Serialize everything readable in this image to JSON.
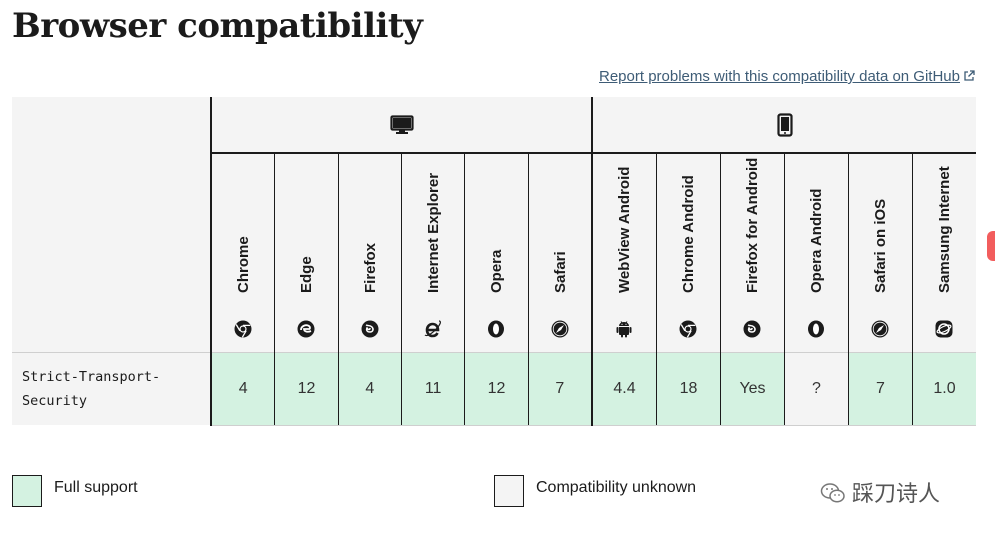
{
  "page": {
    "title": "Browser compatibility",
    "report_link": "Report problems with this compatibility data on GitHub"
  },
  "platforms": [
    {
      "name": "desktop",
      "icon": "desktop-icon"
    },
    {
      "name": "mobile",
      "icon": "mobile-icon"
    }
  ],
  "browsers": [
    {
      "name": "Chrome",
      "icon": "chrome-icon"
    },
    {
      "name": "Edge",
      "icon": "edge-icon"
    },
    {
      "name": "Firefox",
      "icon": "firefox-icon"
    },
    {
      "name": "Internet Explorer",
      "icon": "internet-explorer-icon"
    },
    {
      "name": "Opera",
      "icon": "opera-icon"
    },
    {
      "name": "Safari",
      "icon": "safari-icon"
    },
    {
      "name": "WebView Android",
      "icon": "android-icon"
    },
    {
      "name": "Chrome Android",
      "icon": "chrome-icon"
    },
    {
      "name": "Firefox for Android",
      "icon": "firefox-icon"
    },
    {
      "name": "Opera Android",
      "icon": "opera-icon"
    },
    {
      "name": "Safari on iOS",
      "icon": "safari-icon"
    },
    {
      "name": "Samsung Internet",
      "icon": "samsung-internet-icon"
    }
  ],
  "feature": {
    "name_line1": "Strict-Transport-",
    "name_line2": "Security",
    "support": [
      {
        "value": "4",
        "status": "full"
      },
      {
        "value": "12",
        "status": "full"
      },
      {
        "value": "4",
        "status": "full"
      },
      {
        "value": "11",
        "status": "full"
      },
      {
        "value": "12",
        "status": "full"
      },
      {
        "value": "7",
        "status": "full"
      },
      {
        "value": "4.4",
        "status": "full"
      },
      {
        "value": "18",
        "status": "full"
      },
      {
        "value": "Yes",
        "status": "full"
      },
      {
        "value": "?",
        "status": "unknown"
      },
      {
        "value": "7",
        "status": "full"
      },
      {
        "value": "1.0",
        "status": "full"
      }
    ]
  },
  "legend": {
    "full_support": "Full support",
    "compat_unknown": "Compatibility unknown"
  },
  "colors": {
    "full_support": "#d4f2e1",
    "unknown": "#f4f4f4",
    "link": "#3e5c76"
  },
  "watermark": "踩刀诗人"
}
